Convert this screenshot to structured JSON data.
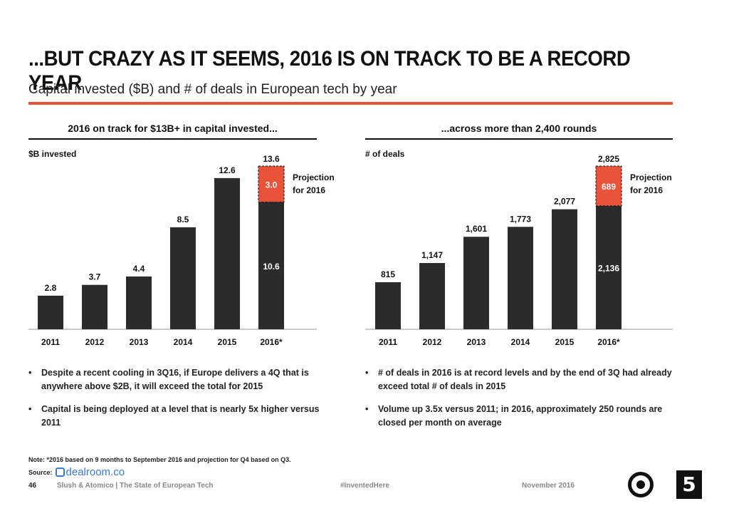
{
  "header": {
    "title": "...BUT CRAZY AS IT SEEMS, 2016 IS ON TRACK TO BE A RECORD YEAR",
    "subtitle": "Capital invested ($B) and # of deals in European tech by year"
  },
  "left_panel": {
    "heading": "2016 on track for $13B+ in capital invested...",
    "bullets": [
      "Despite a recent cooling in 3Q16, if Europe delivers a 4Q that is anywhere above $2B, it will exceed the total for 2015",
      "Capital is being deployed at a level that is nearly 5x higher versus 2011"
    ]
  },
  "right_panel": {
    "heading": "...across more than 2,400 rounds",
    "bullets": [
      "# of deals in 2016 is at record levels and by the end of 3Q had already exceed total # of deals in 2015",
      "Volume up 3.5x versus 2011; in 2016, approximately 250 rounds are closed per month on average"
    ]
  },
  "chart_data": [
    {
      "type": "bar",
      "ylabel": "$B invested",
      "categories": [
        "2011",
        "2012",
        "2013",
        "2014",
        "2015",
        "2016*"
      ],
      "values": [
        2.8,
        3.7,
        4.4,
        8.5,
        12.6,
        10.6
      ],
      "value_labels": [
        "2.8",
        "3.7",
        "4.4",
        "8.5",
        "12.6",
        "10.6"
      ],
      "projection": {
        "category": "2016*",
        "value": 3.0,
        "label": "3.0",
        "total": 13.6,
        "total_label": "13.6",
        "note_line1": "Projection",
        "note_line2": "for 2016"
      },
      "ylim": [
        0,
        14
      ],
      "colors": {
        "bar": "#2b2b2b",
        "projection": "#e8533a"
      }
    },
    {
      "type": "bar",
      "ylabel": "# of deals",
      "categories": [
        "2011",
        "2012",
        "2013",
        "2014",
        "2015",
        "2016*"
      ],
      "values": [
        815,
        1147,
        1601,
        1773,
        2077,
        2136
      ],
      "value_labels": [
        "815",
        "1,147",
        "1,601",
        "1,773",
        "2,077",
        "2,136"
      ],
      "projection": {
        "category": "2016*",
        "value": 689,
        "label": "689",
        "total": 2825,
        "total_label": "2,825",
        "note_line1": "Projection",
        "note_line2": "for 2016"
      },
      "ylim": [
        0,
        2900
      ],
      "colors": {
        "bar": "#2b2b2b",
        "projection": "#e8533a"
      }
    }
  ],
  "footer": {
    "note": "Note: *2016 based on 9 months to September 2016 and projection for Q4 based on Q3.",
    "source_label": "Source:",
    "source_logo": "dealroom.co",
    "page_number": "46",
    "credit": "Slush & Atomico  |  The State of European Tech",
    "hashtag": "#InventedHere",
    "date": "November 2016",
    "logo_square_glyph": "5"
  }
}
